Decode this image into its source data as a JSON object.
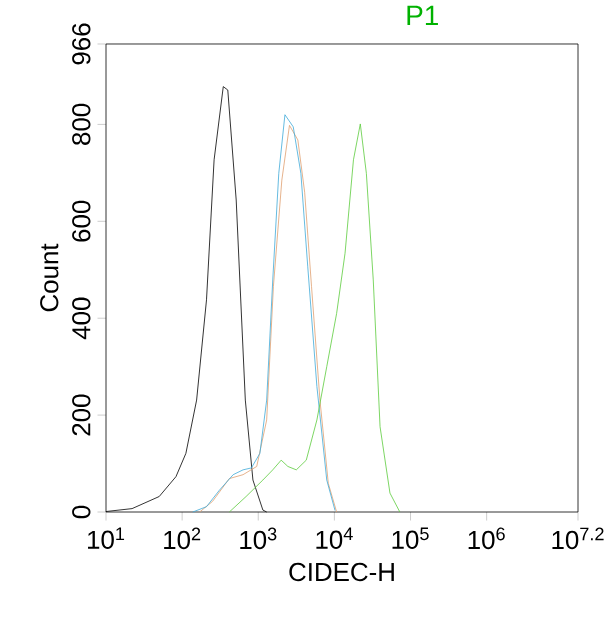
{
  "chart_data": {
    "type": "line",
    "title": "P1",
    "xlabel": "CIDEC-H",
    "ylabel": "Count",
    "log": "x",
    "xlim": [
      10,
      15848932
    ],
    "ylim": [
      0,
      966
    ],
    "xticks": [
      {
        "value": 10,
        "label": "10$^{1}$"
      },
      {
        "value": 100,
        "label": "10$^{2}$"
      },
      {
        "value": 1000,
        "label": "10$^{3}$"
      },
      {
        "value": 10000,
        "label": "10$^{4}$"
      },
      {
        "value": 100000,
        "label": "10$^{5}$"
      },
      {
        "value": 1000000,
        "label": "10$^{6}$"
      },
      {
        "value": 15848932,
        "label": "10$^{7.2}$"
      }
    ],
    "yticks": [
      0,
      200,
      400,
      600,
      800,
      966
    ],
    "series": [
      {
        "color": "#000000",
        "x": [
          10,
          22,
          50,
          83,
          112,
          155,
          209,
          263,
          347,
          398,
          513,
          676,
          851,
          1150,
          1290
        ],
        "values": [
          1,
          7,
          32,
          73,
          121,
          231,
          438,
          727,
          878,
          871,
          644,
          231,
          66,
          4,
          0
        ]
      },
      {
        "color": "#e0a070",
        "x": [
          170,
          251,
          417,
          631,
          955,
          1290,
          1580,
          2040,
          2570,
          3310,
          4070,
          5010,
          6460,
          8320,
          10700
        ],
        "values": [
          0,
          22,
          69,
          77,
          94,
          190,
          465,
          685,
          798,
          768,
          660,
          465,
          231,
          59,
          0
        ]
      },
      {
        "color": "#3fa9d8",
        "x": [
          138,
          209,
          309,
          468,
          631,
          813,
          1050,
          1290,
          1550,
          1860,
          2240,
          2880,
          3630,
          4470,
          5890,
          7940,
          10200
        ],
        "values": [
          0,
          11,
          45,
          77,
          87,
          91,
          121,
          231,
          479,
          699,
          820,
          795,
          699,
          506,
          259,
          66,
          3
        ]
      },
      {
        "color": "#5ccc3c",
        "x": [
          417,
          692,
          1150,
          1550,
          2000,
          2450,
          3160,
          4270,
          5890,
          7940,
          10700,
          13800,
          17800,
          21900,
          26300,
          32400,
          39800,
          53700,
          72400
        ],
        "values": [
          0,
          32,
          66,
          87,
          107,
          94,
          87,
          107,
          190,
          300,
          410,
          534,
          727,
          801,
          699,
          479,
          176,
          39,
          0
        ]
      }
    ]
  }
}
